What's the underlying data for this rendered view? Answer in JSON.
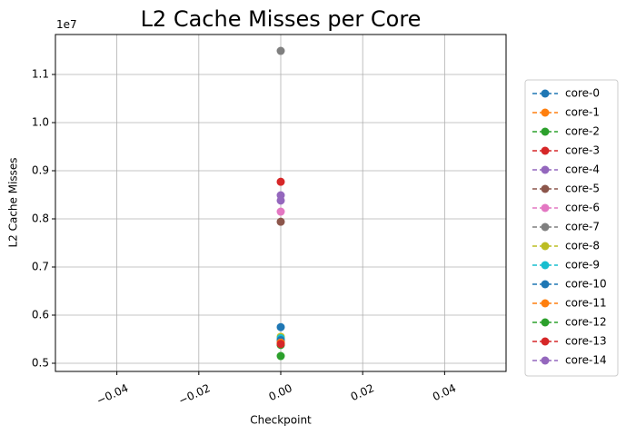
{
  "chart_data": {
    "type": "line",
    "title": "L2 Cache Misses per Core",
    "x_label": "Checkpoint",
    "y_label": "L2 Cache Misses",
    "y_offset_label": "1e7",
    "x": [
      0
    ],
    "series": [
      {
        "name": "core-0",
        "color": "#1f77b4",
        "values": [
          0.575
        ]
      },
      {
        "name": "core-1",
        "color": "#ff7f0e",
        "values": [
          0.545
        ]
      },
      {
        "name": "core-2",
        "color": "#2ca02c",
        "values": [
          0.515
        ]
      },
      {
        "name": "core-3",
        "color": "#d62728",
        "values": [
          0.877
        ]
      },
      {
        "name": "core-4",
        "color": "#9467bd",
        "values": [
          0.849
        ]
      },
      {
        "name": "core-5",
        "color": "#8c564b",
        "values": [
          0.794
        ]
      },
      {
        "name": "core-6",
        "color": "#e377c2",
        "values": [
          0.815
        ]
      },
      {
        "name": "core-7",
        "color": "#7f7f7f",
        "values": [
          1.149
        ]
      },
      {
        "name": "core-8",
        "color": "#bcbd22",
        "values": [
          0.555
        ]
      },
      {
        "name": "core-9",
        "color": "#17becf",
        "values": [
          0.552
        ]
      },
      {
        "name": "core-10",
        "color": "#1f77b4",
        "values": [
          0.548
        ]
      },
      {
        "name": "core-11",
        "color": "#ff7f0e",
        "values": [
          0.543
        ]
      },
      {
        "name": "core-12",
        "color": "#2ca02c",
        "values": [
          0.538
        ]
      },
      {
        "name": "core-13",
        "color": "#d62728",
        "values": [
          0.54
        ]
      },
      {
        "name": "core-14",
        "color": "#9467bd",
        "values": [
          0.838
        ]
      }
    ],
    "xlim": [
      -0.055,
      0.055
    ],
    "xticks": [
      {
        "value": -0.04,
        "label": "−0.04"
      },
      {
        "value": -0.02,
        "label": "−0.02"
      },
      {
        "value": 0,
        "label": "0.00"
      },
      {
        "value": 0.02,
        "label": "0.02"
      },
      {
        "value": 0.04,
        "label": "0.04"
      }
    ],
    "ylim": [
      0.483,
      1.183
    ],
    "yticks": [
      0.5,
      0.6,
      0.7,
      0.8,
      0.9,
      {
        "value": 1,
        "label": "1.0"
      },
      1.1
    ],
    "grid": true,
    "legend": "right"
  }
}
